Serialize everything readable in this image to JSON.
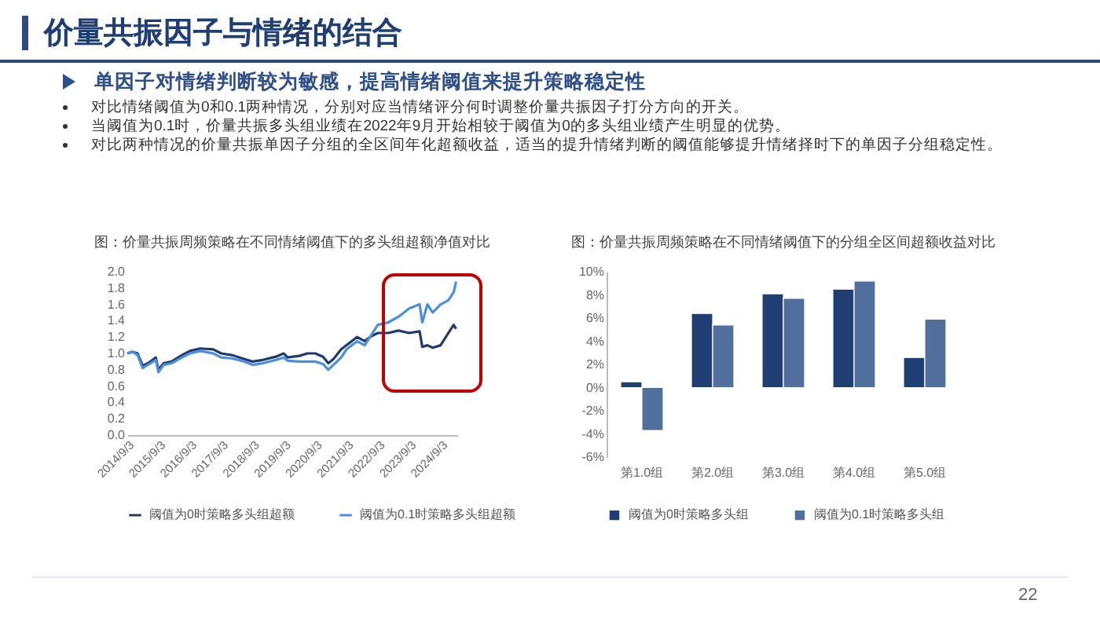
{
  "chart_data": [
    {
      "type": "other",
      "title": "价量共振因子与情绪的结合",
      "subtitle": "单因子对情绪判断较为敏感，提高情绪阈值来提升策略稳定性",
      "annotations": [
        "对比情绪阈值为0和0.1两种情况，分别对应当情绪评分何时调整价量共振因子打分方向的开关。",
        "当阈值为0.1时，价量共振多头组业绩在2022年9月开始相较于阈值为0的多头组业绩产生明显的优势。",
        "对比两种情况的价量共振单因子分组的全区间年化超额收益，适当的提升情绪判断的阈值能够提升情绪择时下的单因子分组稳定性。",
        "22"
      ]
    },
    {
      "type": "line",
      "title": "图：价量共振周频策略在不同情绪阈值下的多头组超额净值对比",
      "x": [
        "2014-09-03",
        "2014-11-01",
        "2015-01-01",
        "2015-03-01",
        "2015-05-01",
        "2015-08-01",
        "2015-09-01",
        "2015-11-01",
        "2016-02-01",
        "2016-06-01",
        "2016-09-01",
        "2017-01-01",
        "2017-06-01",
        "2017-09-01",
        "2018-01-01",
        "2018-06-01",
        "2018-09-01",
        "2019-01-01",
        "2019-06-01",
        "2019-09-01",
        "2019-10-15",
        "2020-03-01",
        "2020-06-01",
        "2020-09-01",
        "2020-12-01",
        "2021-02-01",
        "2021-04-01",
        "2021-07-01",
        "2021-09-01",
        "2022-01-01",
        "2022-04-01",
        "2022-06-01",
        "2022-09-01",
        "2023-01-01",
        "2023-05-01",
        "2023-09-01",
        "2024-01-01",
        "2024-02-01",
        "2024-04-01",
        "2024-06-01",
        "2024-09-01",
        "2024-12-01",
        "2025-02-01",
        "2025-03-01"
      ],
      "series": [
        {
          "name": "阈值为0时策略多头组超额",
          "color": "#1f3a6e",
          "values": [
            1.0,
            1.02,
            1.0,
            0.85,
            0.88,
            0.95,
            0.8,
            0.88,
            0.9,
            0.98,
            1.03,
            1.06,
            1.05,
            1.0,
            0.98,
            0.93,
            0.9,
            0.92,
            0.96,
            1.0,
            0.95,
            0.97,
            1.0,
            1.0,
            0.96,
            0.88,
            0.93,
            1.05,
            1.1,
            1.2,
            1.15,
            1.2,
            1.25,
            1.25,
            1.28,
            1.25,
            1.27,
            1.08,
            1.1,
            1.07,
            1.1,
            1.25,
            1.35,
            1.3
          ]
        },
        {
          "name": "阈值为0.1时策略多头组超额",
          "color": "#4a8ee0",
          "values": [
            1.0,
            1.02,
            0.98,
            0.82,
            0.86,
            0.92,
            0.77,
            0.86,
            0.88,
            0.95,
            1.0,
            1.03,
            1.0,
            0.95,
            0.94,
            0.9,
            0.86,
            0.88,
            0.92,
            0.95,
            0.91,
            0.9,
            0.9,
            0.9,
            0.87,
            0.8,
            0.86,
            0.95,
            1.05,
            1.15,
            1.1,
            1.2,
            1.35,
            1.38,
            1.45,
            1.55,
            1.6,
            1.38,
            1.6,
            1.5,
            1.6,
            1.65,
            1.75,
            1.88
          ]
        }
      ],
      "xlim": [
        "2014-09-03",
        "2025-03-15"
      ],
      "xticks": [
        {
          "value": "2014-09-03",
          "label": "2014/9/3"
        },
        {
          "value": "2015-09-03",
          "label": "2015/9/3"
        },
        {
          "value": "2016-09-03",
          "label": "2016/9/3"
        },
        {
          "value": "2017-09-03",
          "label": "2017/9/3"
        },
        {
          "value": "2018-09-03",
          "label": "2018/9/3"
        },
        {
          "value": "2019-09-03",
          "label": "2019/9/3"
        },
        {
          "value": "2020-09-03",
          "label": "2020/9/3"
        },
        {
          "value": "2021-09-03",
          "label": "2021/9/3"
        },
        {
          "value": "2022-09-03",
          "label": "2022/9/3"
        },
        {
          "value": "2023-09-03",
          "label": "2023/9/3"
        },
        {
          "value": "2024-09-03",
          "label": "2024/9/3"
        }
      ],
      "ylim": [
        0,
        2
      ],
      "yticks": [
        {
          "value": 0,
          "label": "0.0"
        },
        {
          "value": 0.2,
          "label": "0.2"
        },
        {
          "value": 0.4,
          "label": "0.4"
        },
        {
          "value": 0.6,
          "label": "0.6"
        },
        {
          "value": 0.8,
          "label": "0.8"
        },
        {
          "value": 1,
          "label": "1.0"
        },
        {
          "value": 1.2,
          "label": "1.2"
        },
        {
          "value": 1.4,
          "label": "1.4"
        },
        {
          "value": 1.6,
          "label": "1.6"
        },
        {
          "value": 1.8,
          "label": "1.8"
        },
        {
          "value": 2,
          "label": "2.0"
        }
      ],
      "grid": false,
      "legend": "bottom",
      "marker": "none",
      "line_style": "solid"
    },
    {
      "type": "bar",
      "title": "图：价量共振周频策略在不同情绪阈值下的分组全区间超额收益对比",
      "categories": [
        "第1.0组",
        "第2.0组",
        "第3.0组",
        "第4.0组",
        "第5.0组"
      ],
      "series": [
        {
          "name": "阈值为0时策略多头组",
          "color": "#1f3e73",
          "values": [
            0.5,
            6.4,
            8.1,
            8.5,
            2.6
          ]
        },
        {
          "name": "阈值为0.1时策略多头组",
          "color": "#506f9c",
          "values": [
            -3.7,
            5.4,
            7.7,
            9.2,
            5.9
          ]
        }
      ],
      "ylim": [
        -6,
        10
      ],
      "yticks": [
        {
          "value": -6,
          "label": "-6%"
        },
        {
          "value": -4,
          "label": "-4%"
        },
        {
          "value": -2,
          "label": "-2%"
        },
        {
          "value": 0,
          "label": "0%"
        },
        {
          "value": 2,
          "label": "2%"
        },
        {
          "value": 4,
          "label": "4%"
        },
        {
          "value": 6,
          "label": "6%"
        },
        {
          "value": 8,
          "label": "8%"
        },
        {
          "value": 10,
          "label": "10%"
        }
      ],
      "grid": false,
      "legend": "bottom"
    }
  ]
}
